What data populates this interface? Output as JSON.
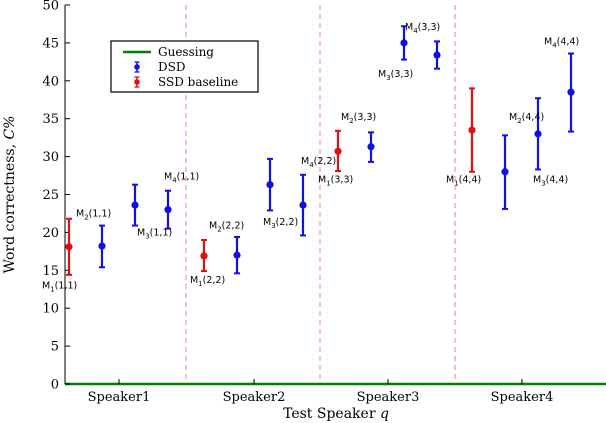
{
  "chart_data": {
    "type": "scatter",
    "title": "",
    "xlabel": "Test Speaker q",
    "ylabel": "Word correctness, C%",
    "ylim": [
      0,
      50
    ],
    "yticks": [
      0,
      5,
      10,
      15,
      20,
      25,
      30,
      35,
      40,
      45,
      50
    ],
    "categories": [
      "Speaker1",
      "Speaker2",
      "Speaker3",
      "Speaker4"
    ],
    "legend_position": "upper-left",
    "legend": [
      {
        "label": "Guessing",
        "color": "#008000",
        "kind": "line"
      },
      {
        "label": "DSD",
        "color": "#1010e0",
        "kind": "errorbar"
      },
      {
        "label": "SSD baseline",
        "color": "#e01010",
        "kind": "errorbar"
      }
    ],
    "guessing_level": 0,
    "separator_color": "#f08080",
    "series": [
      {
        "name": "DSD",
        "color": "#1010e0",
        "points": [
          {
            "speaker": 1,
            "model": 2,
            "y": 18.2,
            "lo": 15.4,
            "hi": 20.9
          },
          {
            "speaker": 1,
            "model": 3,
            "y": 23.6,
            "lo": 20.9,
            "hi": 26.3
          },
          {
            "speaker": 1,
            "model": 4,
            "y": 23.0,
            "lo": 20.5,
            "hi": 25.5
          },
          {
            "speaker": 2,
            "model": 2,
            "y": 17.0,
            "lo": 14.6,
            "hi": 19.4
          },
          {
            "speaker": 2,
            "model": 3,
            "y": 26.3,
            "lo": 22.9,
            "hi": 29.7
          },
          {
            "speaker": 2,
            "model": 4,
            "y": 23.6,
            "lo": 19.6,
            "hi": 27.6
          },
          {
            "speaker": 3,
            "model": 2,
            "y": 31.3,
            "lo": 29.3,
            "hi": 33.2
          },
          {
            "speaker": 3,
            "model": 3,
            "y": 45.0,
            "lo": 42.8,
            "hi": 47.2
          },
          {
            "speaker": 3,
            "model": 4,
            "y": 43.4,
            "lo": 41.6,
            "hi": 45.2
          },
          {
            "speaker": 4,
            "model": 2,
            "y": 28.0,
            "lo": 23.1,
            "hi": 32.8
          },
          {
            "speaker": 4,
            "model": 3,
            "y": 33.0,
            "lo": 28.3,
            "hi": 37.7
          },
          {
            "speaker": 4,
            "model": 4,
            "y": 38.5,
            "lo": 33.3,
            "hi": 43.6
          }
        ]
      },
      {
        "name": "SSD baseline",
        "color": "#e01010",
        "points": [
          {
            "speaker": 1,
            "model": 1,
            "y": 18.1,
            "lo": 14.4,
            "hi": 21.8
          },
          {
            "speaker": 2,
            "model": 1,
            "y": 16.9,
            "lo": 14.9,
            "hi": 19.0
          },
          {
            "speaker": 3,
            "model": 1,
            "y": 30.7,
            "lo": 28.1,
            "hi": 33.4
          },
          {
            "speaker": 4,
            "model": 1,
            "y": 33.5,
            "lo": 28.0,
            "hi": 39.0
          }
        ]
      }
    ],
    "annotations": [
      {
        "base": "M",
        "sub": "1",
        "args": "(1,1)",
        "speaker": 1,
        "model": 1,
        "y": 12.6
      },
      {
        "base": "M",
        "sub": "2",
        "args": "(1,1)",
        "speaker": 1,
        "model": 2,
        "y": 22.1
      },
      {
        "base": "M",
        "sub": "3",
        "args": "(1,1)",
        "speaker": 1,
        "model": 3,
        "y": 19.6
      },
      {
        "base": "M",
        "sub": "4",
        "args": "(1,1)",
        "speaker": 1,
        "model": 4,
        "y": 27.0
      },
      {
        "base": "M",
        "sub": "1",
        "args": "(2,2)",
        "speaker": 2,
        "model": 1,
        "y": 13.3
      },
      {
        "base": "M",
        "sub": "2",
        "args": "(2,2)",
        "speaker": 2,
        "model": 2,
        "y": 20.5
      },
      {
        "base": "M",
        "sub": "3",
        "args": "(2,2)",
        "speaker": 2,
        "model": 3,
        "y": 21.0
      },
      {
        "base": "M",
        "sub": "4",
        "args": "(2,2)",
        "speaker": 2,
        "model": 4,
        "y": 29.0
      },
      {
        "base": "M",
        "sub": "1",
        "args": "(3,3)",
        "speaker": 3,
        "model": 1,
        "y": 26.6
      },
      {
        "base": "M",
        "sub": "2",
        "args": "(3,3)",
        "speaker": 3,
        "model": 2,
        "y": 34.8
      },
      {
        "base": "M",
        "sub": "3",
        "args": "(3,3)",
        "speaker": 3,
        "model": 3,
        "y": 40.5
      },
      {
        "base": "M",
        "sub": "4",
        "args": "(3,3)",
        "speaker": 3,
        "model": 4,
        "y": 46.7
      },
      {
        "base": "M",
        "sub": "1",
        "args": "(4,4)",
        "speaker": 4,
        "model": 1,
        "y": 26.6
      },
      {
        "base": "M",
        "sub": "2",
        "args": "(4,4)",
        "speaker": 4,
        "model": 2,
        "y": 34.8
      },
      {
        "base": "M",
        "sub": "3",
        "args": "(4,4)",
        "speaker": 4,
        "model": 3,
        "y": 26.6
      },
      {
        "base": "M",
        "sub": "4",
        "args": "(4,4)",
        "speaker": 4,
        "model": 4,
        "y": 44.8
      }
    ]
  }
}
